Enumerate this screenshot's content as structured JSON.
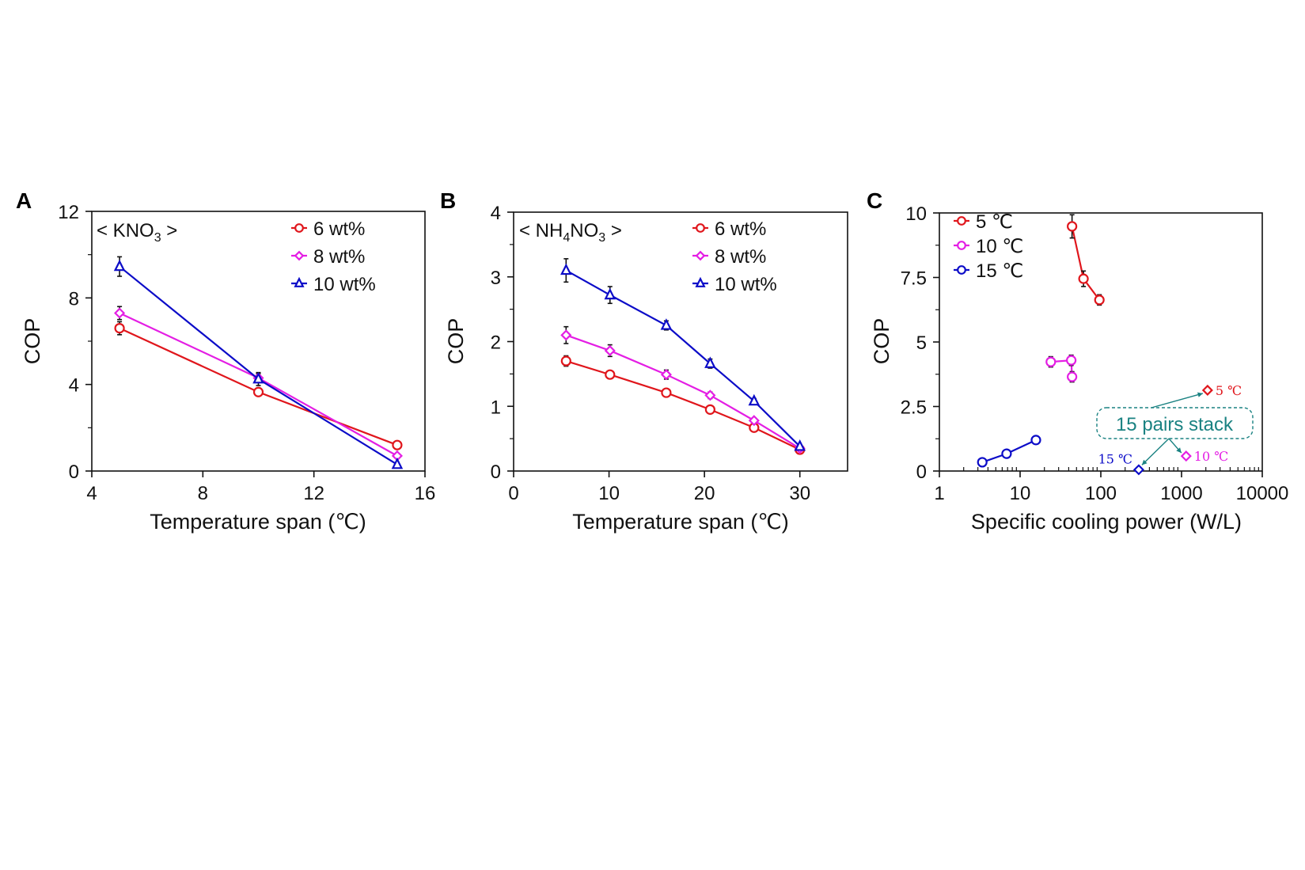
{
  "colors": {
    "red": "#e0161c",
    "magenta": "#e41ee4",
    "blue": "#0c0cc8",
    "teal": "#1a8282",
    "axis": "#111111",
    "errorbar": "#111111"
  },
  "chart_data": [
    {
      "panel": "A",
      "type": "line",
      "title": "< KNO3 >",
      "title_parts": {
        "prefix": "< KNO",
        "sub": "3",
        "suffix": " >"
      },
      "xlabel": "Temperature span (℃)",
      "ylabel": "COP",
      "xscale": "linear",
      "xlim": [
        4,
        16
      ],
      "ylim": [
        0,
        12
      ],
      "xticks": [
        4,
        8,
        12,
        16
      ],
      "yticks": [
        0,
        4,
        8,
        12
      ],
      "yminor": [
        2,
        6,
        10
      ],
      "legend_position": "top-right",
      "series": [
        {
          "name": "6 wt%",
          "color_key": "red",
          "marker": "circle",
          "x": [
            5,
            10,
            15
          ],
          "y": [
            6.6,
            3.65,
            1.2
          ],
          "err": [
            0.3,
            0.15,
            0.1
          ]
        },
        {
          "name": "8 wt%",
          "color_key": "magenta",
          "marker": "diamond",
          "x": [
            5,
            10,
            15
          ],
          "y": [
            7.3,
            4.3,
            0.7
          ],
          "err": [
            0.3,
            0.2,
            0.1
          ]
        },
        {
          "name": "10 wt%",
          "color_key": "blue",
          "marker": "triangle",
          "x": [
            5,
            10,
            15
          ],
          "y": [
            9.45,
            4.25,
            0.3
          ],
          "err": [
            0.45,
            0.3,
            0.05
          ]
        }
      ]
    },
    {
      "panel": "B",
      "type": "line",
      "title": "< NH4NO3 >",
      "title_parts": {
        "prefix": "< NH",
        "sub": "4",
        "mid": "NO",
        "sub2": "3",
        "suffix": " >"
      },
      "xlabel": "Temperature span (℃)",
      "ylabel": "COP",
      "xscale": "linear",
      "xlim": [
        0,
        35
      ],
      "ylim": [
        0,
        4
      ],
      "xticks": [
        0,
        10,
        20,
        30
      ],
      "yticks": [
        0,
        1,
        2,
        3,
        4
      ],
      "yminor": [
        0.5,
        1.5,
        2.5,
        3.5
      ],
      "legend_position": "top-right",
      "series": [
        {
          "name": "6 wt%",
          "color_key": "red",
          "marker": "circle",
          "x": [
            5.5,
            10.1,
            16.0,
            20.6,
            25.2,
            30.0
          ],
          "y": [
            1.7,
            1.49,
            1.21,
            0.95,
            0.67,
            0.33
          ],
          "err": [
            0.08,
            0.06,
            0.04,
            0.04,
            0.03,
            0.02
          ]
        },
        {
          "name": "8 wt%",
          "color_key": "magenta",
          "marker": "diamond",
          "x": [
            5.5,
            10.1,
            16.0,
            20.6,
            25.2,
            30.0
          ],
          "y": [
            2.1,
            1.86,
            1.49,
            1.17,
            0.78,
            0.35
          ],
          "err": [
            0.13,
            0.09,
            0.07,
            0.05,
            0.04,
            0.02
          ]
        },
        {
          "name": "10 wt%",
          "color_key": "blue",
          "marker": "triangle",
          "x": [
            5.5,
            10.1,
            16.0,
            20.6,
            25.2,
            30.0
          ],
          "y": [
            3.1,
            2.72,
            2.25,
            1.66,
            1.08,
            0.38
          ],
          "err": [
            0.18,
            0.13,
            0.07,
            0.07,
            0.04,
            0.02
          ]
        }
      ]
    },
    {
      "panel": "C",
      "type": "scatter",
      "xlabel": "Specific cooling power (W/L)",
      "ylabel": "COP",
      "xscale": "log",
      "xlim": [
        1,
        10000
      ],
      "ylim": [
        0,
        10
      ],
      "xticks": [
        1,
        10,
        100,
        1000,
        10000
      ],
      "xtick_labels": [
        "1",
        "10",
        "100",
        "1000",
        "10000"
      ],
      "yticks": [
        0,
        2.5,
        5,
        7.5,
        10
      ],
      "ytick_labels": [
        "0",
        "2.5",
        "5",
        "7.5",
        "10"
      ],
      "yminor": [
        1.25,
        3.75,
        6.25,
        8.75
      ],
      "legend_position": "top-left",
      "series": [
        {
          "name": "5 ℃",
          "color_key": "red",
          "marker": "circle",
          "x": [
            44,
            61,
            96
          ],
          "y": [
            9.48,
            7.45,
            6.63
          ],
          "err": [
            0.45,
            0.3,
            0.2
          ]
        },
        {
          "name": "10 ℃",
          "color_key": "magenta",
          "marker": "circle",
          "x": [
            24,
            43,
            44
          ],
          "y": [
            4.23,
            4.29,
            3.65
          ],
          "err": [
            0.2,
            0.2,
            0.2
          ]
        },
        {
          "name": "15 ℃",
          "color_key": "blue",
          "marker": "circle",
          "x": [
            3.4,
            6.8,
            15.7
          ],
          "y": [
            0.34,
            0.67,
            1.2
          ],
          "err": [
            0,
            0,
            0
          ]
        }
      ],
      "stack_points": [
        {
          "label": "5 ℃",
          "color_key": "red",
          "marker": "diamond",
          "x": 2100,
          "y": 3.13
        },
        {
          "label": "10 ℃",
          "color_key": "magenta",
          "marker": "diamond",
          "x": 1140,
          "y": 0.58
        },
        {
          "label": "15 ℃",
          "color_key": "blue",
          "marker": "diamond",
          "x": 295,
          "y": 0.05
        }
      ],
      "annotation": "15 pairs stack"
    }
  ],
  "panels": {
    "A": {
      "letter": "A"
    },
    "B": {
      "letter": "B"
    },
    "C": {
      "letter": "C"
    }
  }
}
